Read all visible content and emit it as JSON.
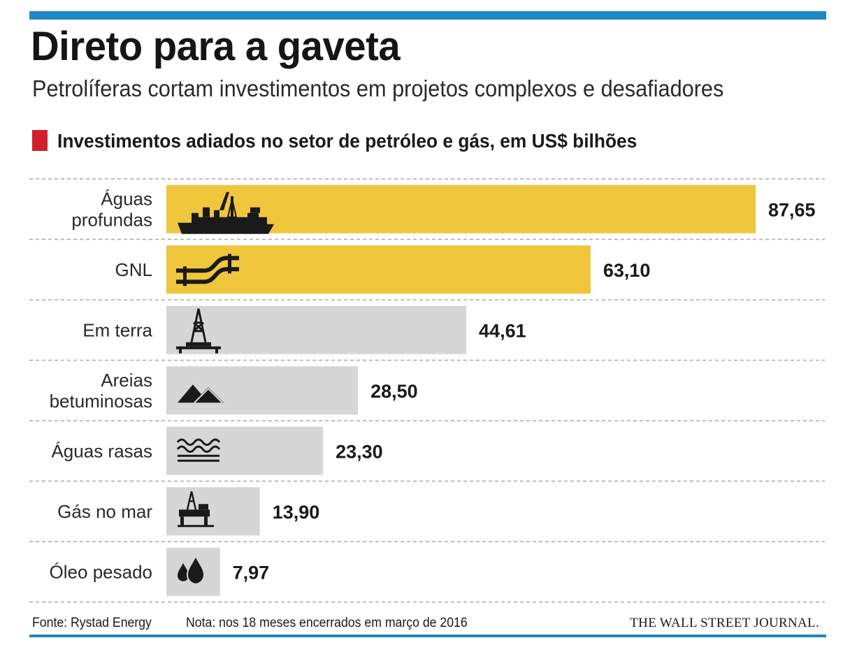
{
  "title": "Direto para a gaveta",
  "subtitle": "Petrolíferas cortam investimentos em projetos complexos e desafiadores",
  "colors": {
    "accent_rule": "#1f87c3",
    "section_marker": "#d0202a",
    "bar_highlight": "#efc63c",
    "bar_default": "#d6d6d6"
  },
  "footer": {
    "source": "Fonte: Rystad Energy",
    "note": "Nota: nos 18 meses encerrados em março de 2016",
    "brand": "THE WALL STREET JOURNAL."
  },
  "chart_data": {
    "type": "bar",
    "orientation": "horizontal",
    "title": "Investimentos adiados no setor de petróleo e gás, em US$ bilhões",
    "categories": [
      [
        "Águas",
        "profundas"
      ],
      [
        "GNL"
      ],
      [
        "Em terra"
      ],
      [
        "Areias",
        "betuminosas"
      ],
      [
        "Águas rasas"
      ],
      [
        "Gás no mar"
      ],
      [
        "Óleo pesado"
      ]
    ],
    "values": [
      87.65,
      63.1,
      44.61,
      28.5,
      23.3,
      13.9,
      7.97
    ],
    "value_labels": [
      "87,65",
      "63,10",
      "44,61",
      "28,50",
      "23,30",
      "13,90",
      "7,97"
    ],
    "highlighted": [
      true,
      true,
      false,
      false,
      false,
      false,
      false
    ],
    "icons": [
      "drillship-icon",
      "pipeline-icon",
      "derrick-icon",
      "oil-sands-icon",
      "waves-icon",
      "offshore-rig-icon",
      "oil-drops-icon"
    ],
    "xlim": [
      0,
      87.65
    ],
    "grid": "dashed row separators",
    "xlabel": "",
    "ylabel": ""
  }
}
